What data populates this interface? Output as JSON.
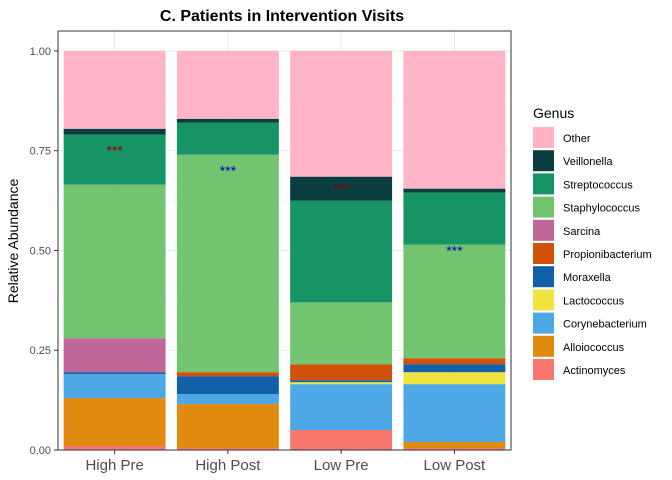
{
  "chart_data": {
    "type": "bar",
    "stacked": true,
    "title": "C. Patients in Intervention Visits",
    "xlabel": "",
    "ylabel": "Relative Abundance",
    "ylim": [
      0,
      1.05
    ],
    "y_ticks": [
      "0.00",
      "0.25",
      "0.50",
      "0.75",
      "1.00"
    ],
    "grid": true,
    "legend_position": "right",
    "legend_title": "Genus",
    "categories": [
      "High Pre",
      "High Post",
      "Low Pre",
      "Low Post"
    ],
    "series": [
      {
        "name": "Actinomyces",
        "color": "#F8766D",
        "values": [
          0.01,
          0.005,
          0.05,
          0.005
        ]
      },
      {
        "name": "Alloiococcus",
        "color": "#E08B0F",
        "values": [
          0.12,
          0.11,
          0.0,
          0.015
        ]
      },
      {
        "name": "Corynebacterium",
        "color": "#4EA8E6",
        "values": [
          0.06,
          0.025,
          0.115,
          0.145
        ]
      },
      {
        "name": "Lactococcus",
        "color": "#F0E441",
        "values": [
          0.0,
          0.0,
          0.005,
          0.03
        ]
      },
      {
        "name": "Moraxella",
        "color": "#1260A8",
        "values": [
          0.005,
          0.045,
          0.005,
          0.02
        ]
      },
      {
        "name": "Propionibacterium",
        "color": "#D1510A",
        "values": [
          0.0,
          0.01,
          0.04,
          0.015
        ]
      },
      {
        "name": "Sarcina",
        "color": "#C06698",
        "values": [
          0.085,
          0.0,
          0.0,
          0.0
        ]
      },
      {
        "name": "Staphylococcus",
        "color": "#73C46F",
        "values": [
          0.385,
          0.545,
          0.155,
          0.285
        ]
      },
      {
        "name": "Streptococcus",
        "color": "#169466",
        "values": [
          0.125,
          0.08,
          0.255,
          0.13
        ]
      },
      {
        "name": "Veillonella",
        "color": "#0A3D40",
        "values": [
          0.015,
          0.01,
          0.06,
          0.01
        ]
      },
      {
        "name": "Other",
        "color": "#FFB3C6",
        "values": [
          0.195,
          0.17,
          0.315,
          0.345
        ]
      }
    ],
    "annotations": [
      {
        "text": "***",
        "category": "High Pre",
        "y": 0.75,
        "color": "#8B0000"
      },
      {
        "text": "***",
        "category": "High Post",
        "y": 0.7,
        "color": "#0000CC"
      },
      {
        "text": "***",
        "category": "Low Pre",
        "y": 0.655,
        "color": "#8B0000"
      },
      {
        "text": "***",
        "category": "Low Post",
        "y": 0.5,
        "color": "#0000CC"
      }
    ]
  }
}
